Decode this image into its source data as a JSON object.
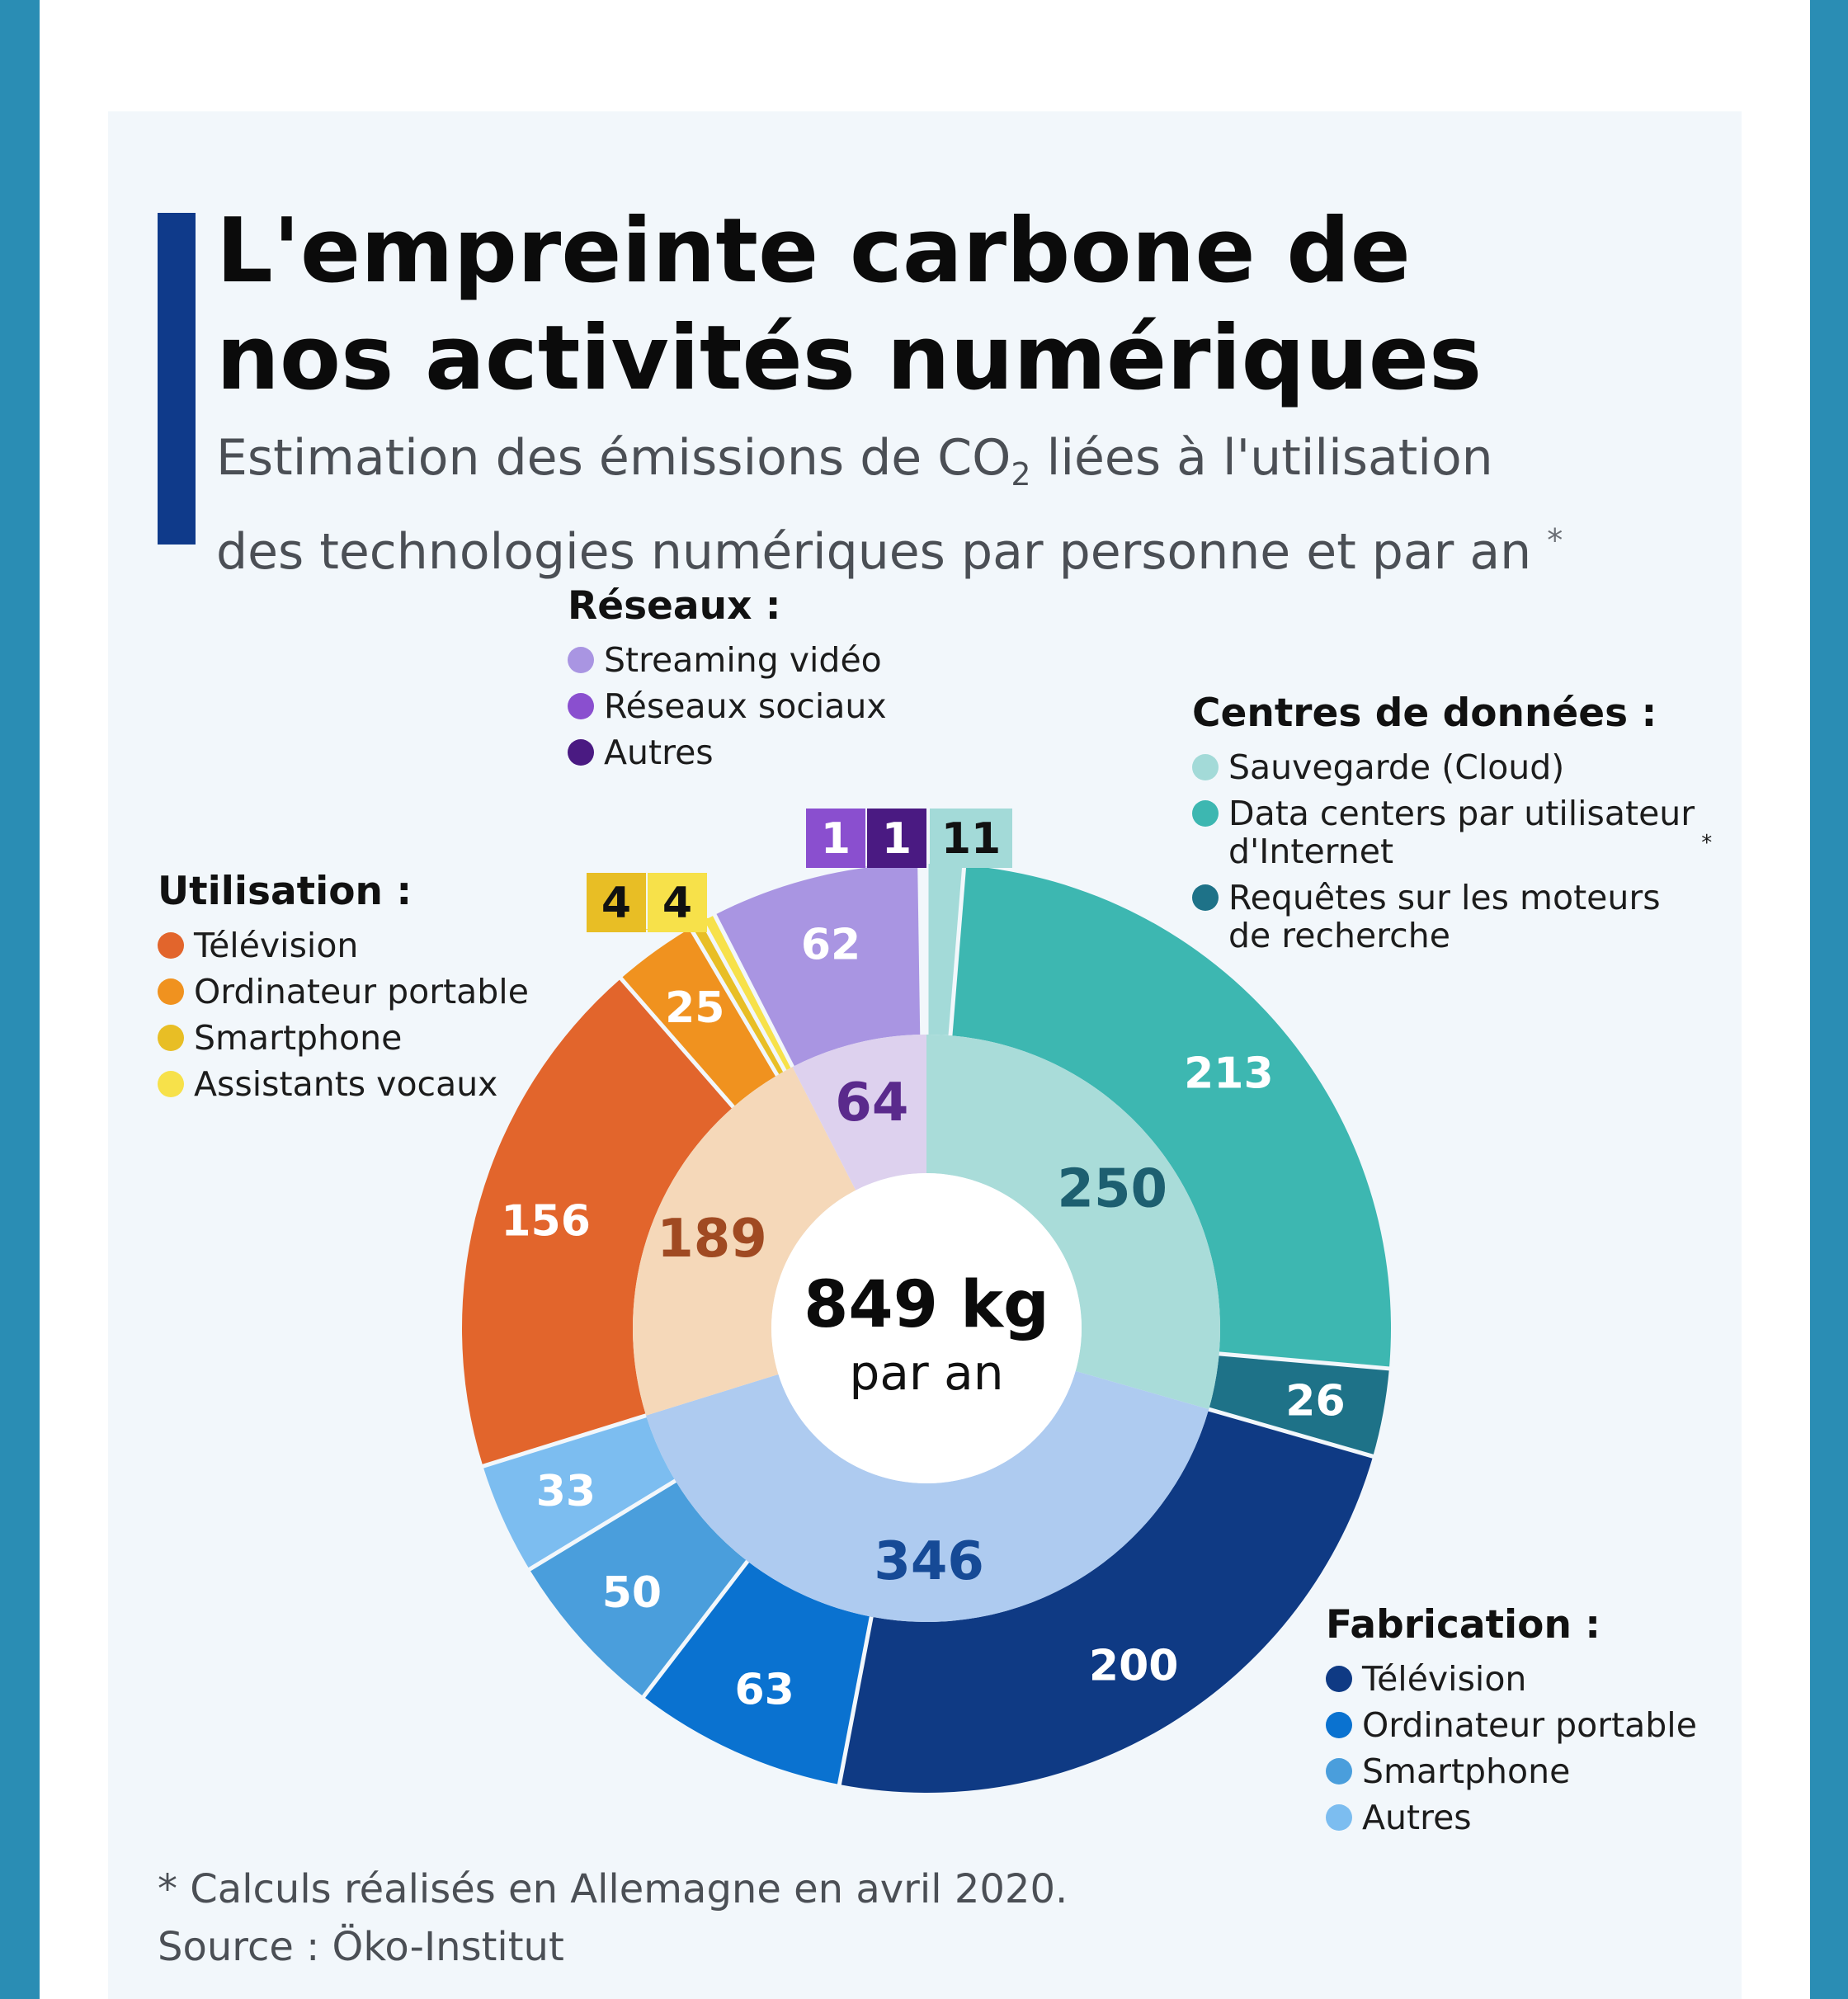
{
  "title": {
    "line1": "L'empreinte carbone de",
    "line2": "nos activités numériques"
  },
  "subtitle": {
    "line1_before": "Estimation des émissions de CO",
    "line1_sub": "2",
    "line1_after": " liées à l'utilisation",
    "line2": "des technologies numériques par personne et par an",
    "asterisk": "*"
  },
  "center": {
    "value": "849 kg",
    "unit": "par an"
  },
  "footnote": "* Calculs réalisés en Allemagne en avril 2020.",
  "source": "Source : Öko-Institut",
  "chart_data": {
    "type": "pie",
    "variant": "two-level donut (sunburst)",
    "total": 849,
    "total_label": "849 kg",
    "groups": [
      {
        "name": "Centres de données :",
        "value": 250,
        "color": "#a9dcd9",
        "label_color": "#1d5f70",
        "items": [
          {
            "name": "Sauvegarde (Cloud)",
            "value": 11,
            "color": "#a3dad8",
            "label_style": "box"
          },
          {
            "name": "Data centers par utilisateur d'Internet",
            "value": 213,
            "color": "#3db7b1",
            "footnote_mark": "*"
          },
          {
            "name": "Requêtes sur les moteurs de recherche",
            "value": 26,
            "color": "#1e7288"
          }
        ]
      },
      {
        "name": "Fabrication :",
        "value": 346,
        "color": "#aecbf0",
        "label_color": "#164a96",
        "items": [
          {
            "name": "Télévision",
            "value": 200,
            "color": "#0f3a84"
          },
          {
            "name": "Ordinateur portable",
            "value": 63,
            "color": "#0a72d0"
          },
          {
            "name": "Smartphone",
            "value": 50,
            "color": "#4a9edc"
          },
          {
            "name": "Autres",
            "value": 33,
            "color": "#7cbdf0"
          }
        ]
      },
      {
        "name": "Utilisation :",
        "value": 189,
        "color": "#f5d8b9",
        "label_color": "#a04a22",
        "items": [
          {
            "name": "Télévision",
            "value": 156,
            "color": "#e2652c"
          },
          {
            "name": "Ordinateur portable",
            "value": 25,
            "color": "#f0921f"
          },
          {
            "name": "Smartphone",
            "value": 4,
            "color": "#e8be25",
            "label_style": "box"
          },
          {
            "name": "Assistants vocaux",
            "value": 4,
            "color": "#f7e14a",
            "label_style": "box"
          }
        ]
      },
      {
        "name": "Réseaux :",
        "value": 64,
        "color": "#ddd1ee",
        "label_color": "#5a2a8c",
        "items": [
          {
            "name": "Streaming vidéo",
            "value": 62,
            "color": "#a995e2"
          },
          {
            "name": "Réseaux sociaux",
            "value": 1,
            "color": "#8a4fcf",
            "label_style": "box"
          },
          {
            "name": "Autres",
            "value": 1,
            "color": "#4a1a82",
            "label_style": "box"
          }
        ]
      }
    ]
  }
}
